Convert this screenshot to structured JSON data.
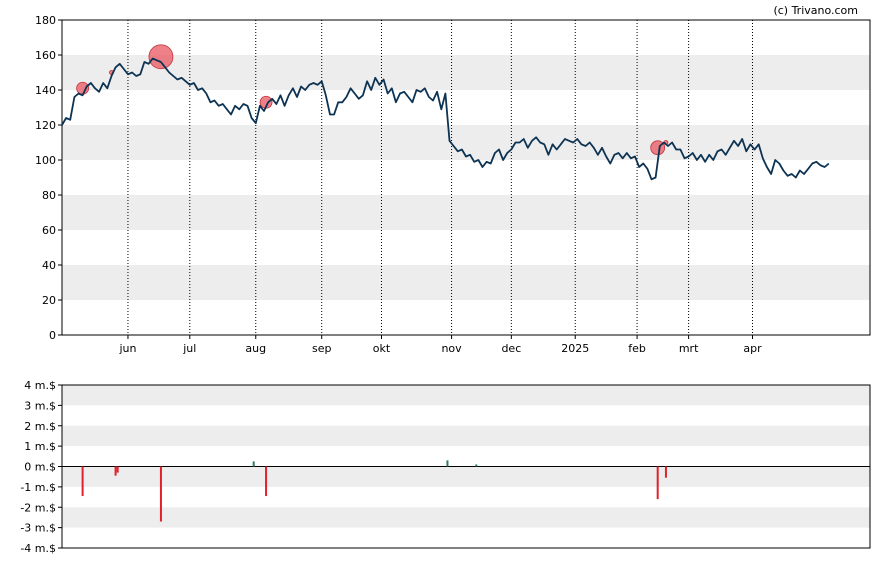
{
  "credit": "(c) Trivano.com",
  "chart_data": [
    {
      "type": "line",
      "name": "price-chart",
      "ylim": [
        0,
        180
      ],
      "yticks": [
        0,
        20,
        40,
        60,
        80,
        100,
        120,
        140,
        160,
        180
      ],
      "x_range": [
        0,
        392
      ],
      "months": [
        {
          "label": "jun",
          "x": 32
        },
        {
          "label": "jul",
          "x": 62
        },
        {
          "label": "aug",
          "x": 94
        },
        {
          "label": "sep",
          "x": 126
        },
        {
          "label": "okt",
          "x": 155
        },
        {
          "label": "nov",
          "x": 189
        },
        {
          "label": "dec",
          "x": 218
        },
        {
          "label": "2025",
          "x": 249
        },
        {
          "label": "feb",
          "x": 279
        },
        {
          "label": "mrt",
          "x": 304
        },
        {
          "label": "apr",
          "x": 335
        }
      ],
      "grid": "alternating horizontal bands, vertical dotted lines at month starts",
      "line_color": "#0d3353",
      "series": [
        {
          "points": [
            [
              0,
              120
            ],
            [
              2,
              124
            ],
            [
              4,
              123
            ],
            [
              6,
              136
            ],
            [
              8,
              138
            ],
            [
              10,
              137
            ],
            [
              12,
              142
            ],
            [
              14,
              144
            ],
            [
              16,
              141
            ],
            [
              18,
              139
            ],
            [
              20,
              144
            ],
            [
              22,
              141
            ],
            [
              24,
              148
            ],
            [
              26,
              153
            ],
            [
              28,
              155
            ],
            [
              30,
              152
            ],
            [
              32,
              149
            ],
            [
              34,
              150
            ],
            [
              36,
              148
            ],
            [
              38,
              149
            ],
            [
              40,
              156
            ],
            [
              42,
              155
            ],
            [
              44,
              158
            ],
            [
              46,
              157
            ],
            [
              48,
              156
            ],
            [
              50,
              153
            ],
            [
              52,
              150
            ],
            [
              54,
              148
            ],
            [
              56,
              146
            ],
            [
              58,
              147
            ],
            [
              60,
              145
            ],
            [
              62,
              143
            ],
            [
              64,
              144
            ],
            [
              66,
              140
            ],
            [
              68,
              141
            ],
            [
              70,
              138
            ],
            [
              72,
              133
            ],
            [
              74,
              134
            ],
            [
              76,
              131
            ],
            [
              78,
              132
            ],
            [
              80,
              129
            ],
            [
              82,
              126
            ],
            [
              84,
              131
            ],
            [
              86,
              129
            ],
            [
              88,
              132
            ],
            [
              90,
              131
            ],
            [
              92,
              124
            ],
            [
              94,
              121
            ],
            [
              96,
              131
            ],
            [
              98,
              128
            ],
            [
              100,
              133
            ],
            [
              102,
              135
            ],
            [
              104,
              132
            ],
            [
              106,
              137
            ],
            [
              108,
              131
            ],
            [
              110,
              137
            ],
            [
              112,
              141
            ],
            [
              114,
              136
            ],
            [
              116,
              142
            ],
            [
              118,
              140
            ],
            [
              120,
              143
            ],
            [
              122,
              144
            ],
            [
              124,
              143
            ],
            [
              126,
              145
            ],
            [
              128,
              137
            ],
            [
              130,
              126
            ],
            [
              132,
              126
            ],
            [
              134,
              133
            ],
            [
              136,
              133
            ],
            [
              138,
              136
            ],
            [
              140,
              141
            ],
            [
              142,
              138
            ],
            [
              144,
              135
            ],
            [
              146,
              137
            ],
            [
              148,
              145
            ],
            [
              150,
              140
            ],
            [
              152,
              147
            ],
            [
              154,
              143
            ],
            [
              156,
              146
            ],
            [
              158,
              138
            ],
            [
              160,
              141
            ],
            [
              162,
              133
            ],
            [
              164,
              138
            ],
            [
              166,
              139
            ],
            [
              168,
              136
            ],
            [
              170,
              133
            ],
            [
              172,
              140
            ],
            [
              174,
              139
            ],
            [
              176,
              141
            ],
            [
              178,
              136
            ],
            [
              180,
              134
            ],
            [
              182,
              139
            ],
            [
              184,
              129
            ],
            [
              186,
              138
            ],
            [
              188,
              111
            ],
            [
              190,
              108
            ],
            [
              192,
              105
            ],
            [
              194,
              106
            ],
            [
              196,
              102
            ],
            [
              198,
              103
            ],
            [
              200,
              99
            ],
            [
              202,
              100
            ],
            [
              204,
              96
            ],
            [
              206,
              99
            ],
            [
              208,
              98
            ],
            [
              210,
              104
            ],
            [
              212,
              106
            ],
            [
              214,
              100
            ],
            [
              216,
              104
            ],
            [
              218,
              106
            ],
            [
              220,
              110
            ],
            [
              222,
              110
            ],
            [
              224,
              112
            ],
            [
              226,
              107
            ],
            [
              228,
              111
            ],
            [
              230,
              113
            ],
            [
              232,
              110
            ],
            [
              234,
              109
            ],
            [
              236,
              103
            ],
            [
              238,
              109
            ],
            [
              240,
              106
            ],
            [
              242,
              109
            ],
            [
              244,
              112
            ],
            [
              246,
              111
            ],
            [
              248,
              110
            ],
            [
              250,
              112
            ],
            [
              252,
              109
            ],
            [
              254,
              108
            ],
            [
              256,
              110
            ],
            [
              258,
              107
            ],
            [
              260,
              103
            ],
            [
              262,
              107
            ],
            [
              264,
              102
            ],
            [
              266,
              98
            ],
            [
              268,
              103
            ],
            [
              270,
              104
            ],
            [
              272,
              101
            ],
            [
              274,
              104
            ],
            [
              276,
              101
            ],
            [
              278,
              102
            ],
            [
              280,
              96
            ],
            [
              282,
              98
            ],
            [
              284,
              95
            ],
            [
              286,
              89
            ],
            [
              288,
              90
            ],
            [
              290,
              108
            ],
            [
              292,
              110
            ],
            [
              294,
              108
            ],
            [
              296,
              110
            ],
            [
              298,
              106
            ],
            [
              300,
              106
            ],
            [
              302,
              101
            ],
            [
              304,
              102
            ],
            [
              306,
              104
            ],
            [
              308,
              100
            ],
            [
              310,
              103
            ],
            [
              312,
              99
            ],
            [
              314,
              103
            ],
            [
              316,
              100
            ],
            [
              318,
              105
            ],
            [
              320,
              106
            ],
            [
              322,
              103
            ],
            [
              324,
              107
            ],
            [
              326,
              111
            ],
            [
              328,
              108
            ],
            [
              330,
              112
            ],
            [
              332,
              105
            ],
            [
              334,
              109
            ],
            [
              336,
              106
            ],
            [
              338,
              109
            ],
            [
              340,
              101
            ],
            [
              342,
              96
            ],
            [
              344,
              92
            ],
            [
              346,
              100
            ],
            [
              348,
              98
            ],
            [
              350,
              94
            ],
            [
              352,
              91
            ],
            [
              354,
              92
            ],
            [
              356,
              90
            ],
            [
              358,
              94
            ],
            [
              360,
              92
            ],
            [
              362,
              95
            ],
            [
              364,
              98
            ],
            [
              366,
              99
            ],
            [
              368,
              97
            ],
            [
              370,
              96
            ],
            [
              372,
              98
            ]
          ]
        }
      ],
      "markers": [
        {
          "x": 10,
          "y": 141,
          "r": 6,
          "color": "#e8555f"
        },
        {
          "x": 24,
          "y": 150,
          "r": 2,
          "color": "#e8555f"
        },
        {
          "x": 48,
          "y": 159,
          "r": 12,
          "color": "#e8555f"
        },
        {
          "x": 99,
          "y": 133,
          "r": 6,
          "color": "#e8555f"
        },
        {
          "x": 289,
          "y": 107,
          "r": 7,
          "color": "#e8555f"
        },
        {
          "x": 293,
          "y": 110,
          "r": 2,
          "color": "#e8555f"
        }
      ]
    },
    {
      "type": "bar",
      "name": "insider-trades",
      "ylim": [
        -4,
        4
      ],
      "ytick_labels": [
        "4 m.$",
        "3 m.$",
        "2 m.$",
        "1 m.$",
        "0 m.$",
        "-1 m.$",
        "-2 m.$",
        "-3 m.$",
        "-4 m.$"
      ],
      "yticks": [
        4,
        3,
        2,
        1,
        0,
        -1,
        -2,
        -3,
        -4
      ],
      "x_range": [
        0,
        392
      ],
      "positive_color": "#2e7d57",
      "negative_color": "#e0202c",
      "bars": [
        {
          "x": 10,
          "value": -1.45
        },
        {
          "x": 26,
          "value": -0.45
        },
        {
          "x": 27,
          "value": -0.3
        },
        {
          "x": 48,
          "value": -2.7
        },
        {
          "x": 93,
          "value": 0.25
        },
        {
          "x": 99,
          "value": -1.45
        },
        {
          "x": 187,
          "value": 0.3
        },
        {
          "x": 201,
          "value": 0.1
        },
        {
          "x": 289,
          "value": -1.6
        },
        {
          "x": 293,
          "value": -0.55
        }
      ]
    }
  ]
}
